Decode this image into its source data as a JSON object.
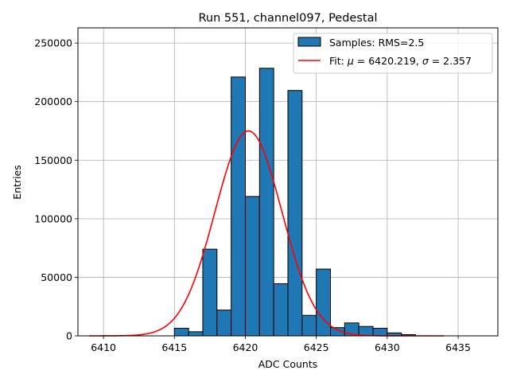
{
  "chart_data": {
    "type": "bar",
    "title": "Run 551, channel097, Pedestal",
    "xlabel": "ADC Counts",
    "ylabel": "Entries",
    "xlim": [
      6408.2,
      6437.8
    ],
    "ylim": [
      0,
      263000
    ],
    "xticks": [
      6410,
      6415,
      6420,
      6425,
      6430,
      6435
    ],
    "xtick_labels": [
      "6410",
      "6415",
      "6420",
      "6425",
      "6430",
      "6435"
    ],
    "yticks": [
      0,
      50000,
      100000,
      150000,
      200000,
      250000
    ],
    "ytick_labels": [
      "0",
      "50000",
      "100000",
      "150000",
      "200000",
      "250000"
    ],
    "grid": true,
    "histogram": {
      "name": "Samples: RMS=2.5",
      "color": "#1f77b4",
      "bin_width": 1,
      "bin_starts": [
        6410,
        6411,
        6412,
        6413,
        6414,
        6415,
        6416,
        6417,
        6418,
        6419,
        6420,
        6421,
        6422,
        6423,
        6424,
        6425,
        6426,
        6427,
        6428,
        6429,
        6430,
        6431,
        6432,
        6433,
        6434,
        6435,
        6436
      ],
      "values": [
        0,
        0,
        0,
        0,
        0,
        6500,
        3500,
        74000,
        22000,
        221000,
        119000,
        228500,
        44500,
        209500,
        17500,
        57000,
        7000,
        11000,
        8000,
        6500,
        2500,
        1000,
        0,
        0,
        0,
        0,
        0
      ]
    },
    "fit": {
      "name": "Fit: μ = 6420.219, σ = 2.357",
      "legend_prefix": "Fit: ",
      "mu_symbol": "μ",
      "mu_text": " = 6420.219, ",
      "sigma_symbol": "σ",
      "sigma_text": " = 2.357",
      "mu": 6420.219,
      "sigma": 2.357,
      "amplitude": 175000,
      "x_range": [
        6409,
        6434
      ],
      "color": "#ff0000"
    },
    "legend_position": "top-right"
  }
}
